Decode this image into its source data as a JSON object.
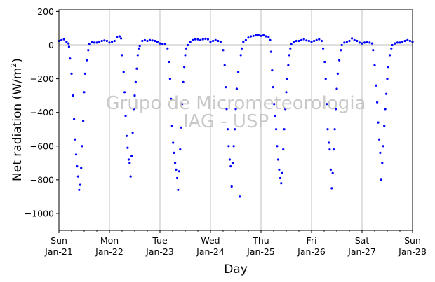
{
  "chart_data": {
    "type": "scatter",
    "xlabel": "Day",
    "ylabel": "Net radiation (W/m²)",
    "ylabel_base": "Net radiation (W/m",
    "ylabel_sup": "2",
    "ylabel_end": ")",
    "watermark_line1": "Grupo de Micrometeorologia",
    "watermark_line2": "IAG - USP",
    "x_range_days": [
      0,
      7
    ],
    "ylim": [
      -1100,
      210
    ],
    "y_ticks": [
      200,
      0,
      -200,
      -400,
      -600,
      -800,
      -1000
    ],
    "y_tick_labels": [
      "200",
      "0",
      "−200",
      "−400",
      "−600",
      "−800",
      "−1000"
    ],
    "x_ticks": [
      {
        "day": 0,
        "line1": "Sun",
        "line2": "Jan-21"
      },
      {
        "day": 1,
        "line1": "Mon",
        "line2": "Jan-22"
      },
      {
        "day": 2,
        "line1": "Tue",
        "line2": "Jan-23"
      },
      {
        "day": 3,
        "line1": "Wed",
        "line2": "Jan-24"
      },
      {
        "day": 4,
        "line1": "Thu",
        "line2": "Jan-25"
      },
      {
        "day": 5,
        "line1": "Fri",
        "line2": "Jan-26"
      },
      {
        "day": 6,
        "line1": "Sat",
        "line2": "Jan-27"
      },
      {
        "day": 7,
        "line1": "Sun",
        "line2": "Jan-28"
      }
    ],
    "grid": "vertical",
    "zero_line": true,
    "marker_color": "#0000ff",
    "series": [
      {
        "values": [
          [
            0.0,
            25
          ],
          [
            0.05,
            30
          ],
          [
            0.1,
            35
          ],
          [
            0.15,
            20
          ],
          [
            0.19,
            10
          ],
          [
            0.2,
            -10
          ],
          [
            0.22,
            -80
          ],
          [
            0.25,
            -170
          ],
          [
            0.28,
            -300
          ],
          [
            0.3,
            -440
          ],
          [
            0.32,
            -560
          ],
          [
            0.34,
            -650
          ],
          [
            0.36,
            -720
          ],
          [
            0.38,
            -780
          ],
          [
            0.4,
            -860
          ],
          [
            0.42,
            -830
          ],
          [
            0.44,
            -730
          ],
          [
            0.46,
            -600
          ],
          [
            0.48,
            -450
          ],
          [
            0.5,
            -280
          ],
          [
            0.52,
            -170
          ],
          [
            0.55,
            -90
          ],
          [
            0.58,
            -30
          ],
          [
            0.6,
            5
          ],
          [
            0.65,
            20
          ],
          [
            0.7,
            15
          ],
          [
            0.75,
            15
          ],
          [
            0.8,
            20
          ],
          [
            0.85,
            25
          ],
          [
            0.9,
            28
          ],
          [
            0.95,
            25
          ],
          [
            1.0,
            15
          ],
          [
            1.05,
            20
          ],
          [
            1.1,
            25
          ],
          [
            1.15,
            48
          ],
          [
            1.2,
            52
          ],
          [
            1.23,
            40
          ],
          [
            1.25,
            -60
          ],
          [
            1.28,
            -160
          ],
          [
            1.3,
            -280
          ],
          [
            1.32,
            -420
          ],
          [
            1.34,
            -540
          ],
          [
            1.36,
            -610
          ],
          [
            1.38,
            -680
          ],
          [
            1.4,
            -700
          ],
          [
            1.42,
            -780
          ],
          [
            1.44,
            -660
          ],
          [
            1.46,
            -520
          ],
          [
            1.48,
            -380
          ],
          [
            1.5,
            -300
          ],
          [
            1.52,
            -220
          ],
          [
            1.54,
            -140
          ],
          [
            1.56,
            -60
          ],
          [
            1.58,
            -20
          ],
          [
            1.6,
            -5
          ],
          [
            1.65,
            25
          ],
          [
            1.7,
            30
          ],
          [
            1.75,
            25
          ],
          [
            1.8,
            30
          ],
          [
            1.85,
            28
          ],
          [
            1.9,
            25
          ],
          [
            1.95,
            20
          ],
          [
            2.0,
            10
          ],
          [
            2.05,
            8
          ],
          [
            2.1,
            5
          ],
          [
            2.15,
            -20
          ],
          [
            2.18,
            -100
          ],
          [
            2.2,
            -200
          ],
          [
            2.22,
            -320
          ],
          [
            2.24,
            -480
          ],
          [
            2.26,
            -580
          ],
          [
            2.28,
            -640
          ],
          [
            2.3,
            -700
          ],
          [
            2.32,
            -740
          ],
          [
            2.34,
            -790
          ],
          [
            2.36,
            -860
          ],
          [
            2.38,
            -750
          ],
          [
            2.4,
            -620
          ],
          [
            2.42,
            -490
          ],
          [
            2.44,
            -350
          ],
          [
            2.46,
            -220
          ],
          [
            2.48,
            -130
          ],
          [
            2.5,
            -60
          ],
          [
            2.52,
            -20
          ],
          [
            2.55,
            0
          ],
          [
            2.6,
            20
          ],
          [
            2.65,
            30
          ],
          [
            2.7,
            35
          ],
          [
            2.75,
            35
          ],
          [
            2.8,
            30
          ],
          [
            2.85,
            35
          ],
          [
            2.9,
            38
          ],
          [
            2.95,
            35
          ],
          [
            3.0,
            20
          ],
          [
            3.05,
            25
          ],
          [
            3.1,
            30
          ],
          [
            3.15,
            25
          ],
          [
            3.2,
            20
          ],
          [
            3.25,
            -30
          ],
          [
            3.28,
            -120
          ],
          [
            3.3,
            -250
          ],
          [
            3.32,
            -380
          ],
          [
            3.34,
            -500
          ],
          [
            3.36,
            -600
          ],
          [
            3.38,
            -680
          ],
          [
            3.4,
            -720
          ],
          [
            3.42,
            -840
          ],
          [
            3.44,
            -700
          ],
          [
            3.46,
            -600
          ],
          [
            3.48,
            -500
          ],
          [
            3.5,
            -380
          ],
          [
            3.52,
            -260
          ],
          [
            3.55,
            -160
          ],
          [
            3.58,
            -900
          ],
          [
            3.6,
            -60
          ],
          [
            3.62,
            -20
          ],
          [
            3.65,
            20
          ],
          [
            3.7,
            30
          ],
          [
            3.75,
            45
          ],
          [
            3.8,
            52
          ],
          [
            3.85,
            55
          ],
          [
            3.9,
            58
          ],
          [
            3.95,
            60
          ],
          [
            4.0,
            55
          ],
          [
            4.05,
            58
          ],
          [
            4.1,
            52
          ],
          [
            4.15,
            48
          ],
          [
            4.18,
            30
          ],
          [
            4.2,
            -40
          ],
          [
            4.22,
            -150
          ],
          [
            4.24,
            -250
          ],
          [
            4.26,
            -350
          ],
          [
            4.28,
            -420
          ],
          [
            4.3,
            -500
          ],
          [
            4.32,
            -600
          ],
          [
            4.34,
            -680
          ],
          [
            4.36,
            -740
          ],
          [
            4.38,
            -790
          ],
          [
            4.4,
            -820
          ],
          [
            4.42,
            -760
          ],
          [
            4.44,
            -620
          ],
          [
            4.46,
            -500
          ],
          [
            4.48,
            -380
          ],
          [
            4.5,
            -280
          ],
          [
            4.52,
            -200
          ],
          [
            4.54,
            -120
          ],
          [
            4.56,
            -60
          ],
          [
            4.58,
            -20
          ],
          [
            4.6,
            5
          ],
          [
            4.65,
            20
          ],
          [
            4.7,
            25
          ],
          [
            4.75,
            25
          ],
          [
            4.8,
            30
          ],
          [
            4.85,
            35
          ],
          [
            4.9,
            28
          ],
          [
            4.95,
            25
          ],
          [
            5.0,
            20
          ],
          [
            5.05,
            25
          ],
          [
            5.1,
            30
          ],
          [
            5.15,
            35
          ],
          [
            5.2,
            25
          ],
          [
            5.23,
            -20
          ],
          [
            5.26,
            -100
          ],
          [
            5.28,
            -200
          ],
          [
            5.3,
            -350
          ],
          [
            5.32,
            -500
          ],
          [
            5.34,
            -580
          ],
          [
            5.36,
            -620
          ],
          [
            5.38,
            -740
          ],
          [
            5.4,
            -850
          ],
          [
            5.42,
            -760
          ],
          [
            5.44,
            -620
          ],
          [
            5.46,
            -500
          ],
          [
            5.48,
            -380
          ],
          [
            5.5,
            -260
          ],
          [
            5.52,
            -170
          ],
          [
            5.55,
            -90
          ],
          [
            5.58,
            -30
          ],
          [
            5.6,
            0
          ],
          [
            5.65,
            15
          ],
          [
            5.7,
            20
          ],
          [
            5.75,
            25
          ],
          [
            5.8,
            40
          ],
          [
            5.85,
            30
          ],
          [
            5.9,
            25
          ],
          [
            5.95,
            15
          ],
          [
            6.0,
            10
          ],
          [
            6.05,
            15
          ],
          [
            6.1,
            20
          ],
          [
            6.15,
            15
          ],
          [
            6.2,
            10
          ],
          [
            6.22,
            -30
          ],
          [
            6.25,
            -120
          ],
          [
            6.28,
            -240
          ],
          [
            6.3,
            -340
          ],
          [
            6.32,
            -460
          ],
          [
            6.34,
            -560
          ],
          [
            6.36,
            -640
          ],
          [
            6.38,
            -800
          ],
          [
            6.4,
            -700
          ],
          [
            6.42,
            -600
          ],
          [
            6.44,
            -480
          ],
          [
            6.46,
            -380
          ],
          [
            6.48,
            -290
          ],
          [
            6.5,
            -200
          ],
          [
            6.52,
            -130
          ],
          [
            6.55,
            -60
          ],
          [
            6.58,
            -20
          ],
          [
            6.6,
            0
          ],
          [
            6.65,
            10
          ],
          [
            6.7,
            15
          ],
          [
            6.75,
            15
          ],
          [
            6.8,
            20
          ],
          [
            6.85,
            25
          ],
          [
            6.9,
            30
          ],
          [
            6.95,
            25
          ],
          [
            7.0,
            20
          ]
        ]
      }
    ]
  }
}
